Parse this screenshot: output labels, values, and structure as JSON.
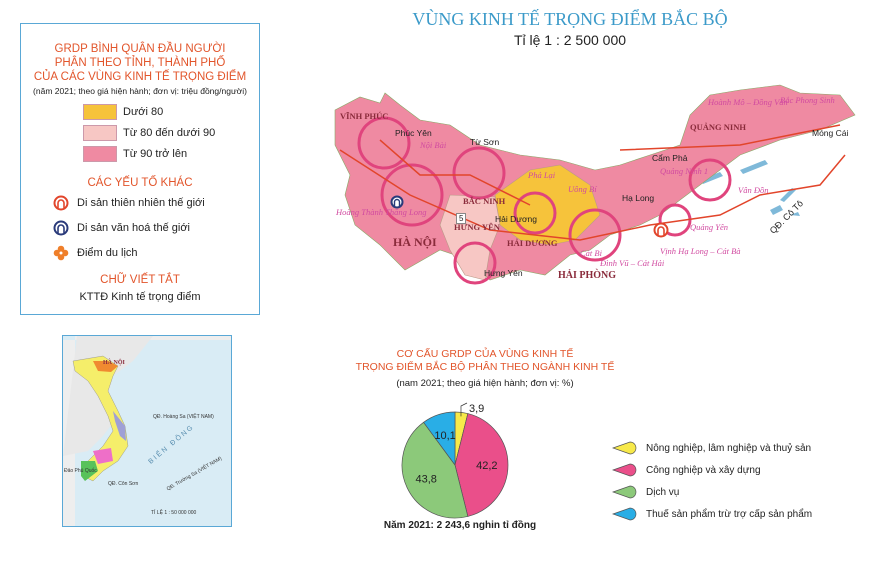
{
  "title": "VÙNG KINH TẾ TRỌNG ĐIỂM BẮC BỘ",
  "scale": "Tỉ lệ 1 : 2 500 000",
  "legend": {
    "heading": [
      "GRDP BÌNH QUÂN ĐẦU NGƯỜI",
      "PHÂN THEO TỈNH, THÀNH PHỐ",
      "CỦA CÁC VÙNG KINH TẾ TRỌNG ĐIỂM"
    ],
    "subtitle": "(năm 2021; theo giá hiện hành; đơn vị: triệu đồng/người)",
    "classes": [
      {
        "label": "Dưới 80",
        "color": "#f6c33b"
      },
      {
        "label": "Từ 80 đến dưới 90",
        "color": "#f7c7c4"
      },
      {
        "label": "Từ 90 trở lên",
        "color": "#ef8aa2"
      }
    ],
    "other_heading": "CÁC YẾU TỐ KHÁC",
    "other": [
      {
        "label": "Di sản thiên nhiên thế giới",
        "icon": "natural-heritage-icon"
      },
      {
        "label": "Di sản văn hoá thế giới",
        "icon": "cultural-heritage-icon"
      },
      {
        "label": "Điểm du lịch",
        "icon": "tourism-icon"
      }
    ],
    "abbr_heading": "CHỮ VIẾT TẮT",
    "abbr": "KTTĐ Kinh tế trọng điểm"
  },
  "map": {
    "provinces": [
      "VĨNH PHÚC",
      "HÀ NỘI",
      "BẮC NINH",
      "HƯNG YÊN",
      "HẢI DƯƠNG",
      "HẢI PHÒNG",
      "QUẢNG NINH"
    ],
    "cities": [
      "Phúc Yên",
      "Từ Sơn",
      "Hải Dương",
      "Hưng Yên",
      "Cẩm Phả",
      "Hạ Long",
      "Móng Cái"
    ],
    "places": [
      "Nội Bài",
      "Hoàng Thành Thăng Long",
      "Phả Lại",
      "Uông Bí",
      "Hoành Mô – Đồng Văn",
      "Bắc Phong Sinh",
      "Quảng Ninh 1",
      "Vân Đồn",
      "Quảng Yên",
      "Vịnh Hạ Long – Cát Bà",
      "Đình Vũ – Cát Hải",
      "Cát Bi"
    ],
    "islands": "QĐ. Cô Tô",
    "road": "5"
  },
  "inset": {
    "hanoi": "HÀ NỘI",
    "sea": "BIỂN ĐÔNG",
    "hoangsa": "QĐ. Hoàng Sa (VIỆT NAM)",
    "truongsa": "QĐ. Trường Sa (VIỆT NAM)",
    "consonu": "QĐ. Côn Sơn",
    "phuquoc": "Đảo Phú Quốc",
    "scale": "TỈ LỆ 1 : 50 000 000"
  },
  "chart_data": {
    "type": "pie",
    "title": [
      "CƠ CẤU GRDP CỦA VÙNG KINH TẾ",
      "TRỌNG ĐIỂM BẮC BỘ PHÂN THEO NGÀNH KINH TẾ"
    ],
    "subtitle": "(nam 2021; theo giá hiện hành; đơn vị: %)",
    "categories": [
      "Nông nghiệp, lâm nghiệp và thuỷ sản",
      "Công nghiệp và xây dựng",
      "Dịch vụ",
      "Thuế sản phẩm trừ trợ cấp sản phẩm"
    ],
    "values": [
      3.9,
      42.2,
      43.8,
      10.1
    ],
    "labels": [
      "3,9",
      "42,2",
      "43,8",
      "10,1"
    ],
    "colors": [
      "#f7e94a",
      "#ea4f8a",
      "#8cc97a",
      "#29aee6"
    ],
    "caption": "Năm 2021: 2 243,6 nghin tỉ đồng",
    "legend_position": "right"
  }
}
